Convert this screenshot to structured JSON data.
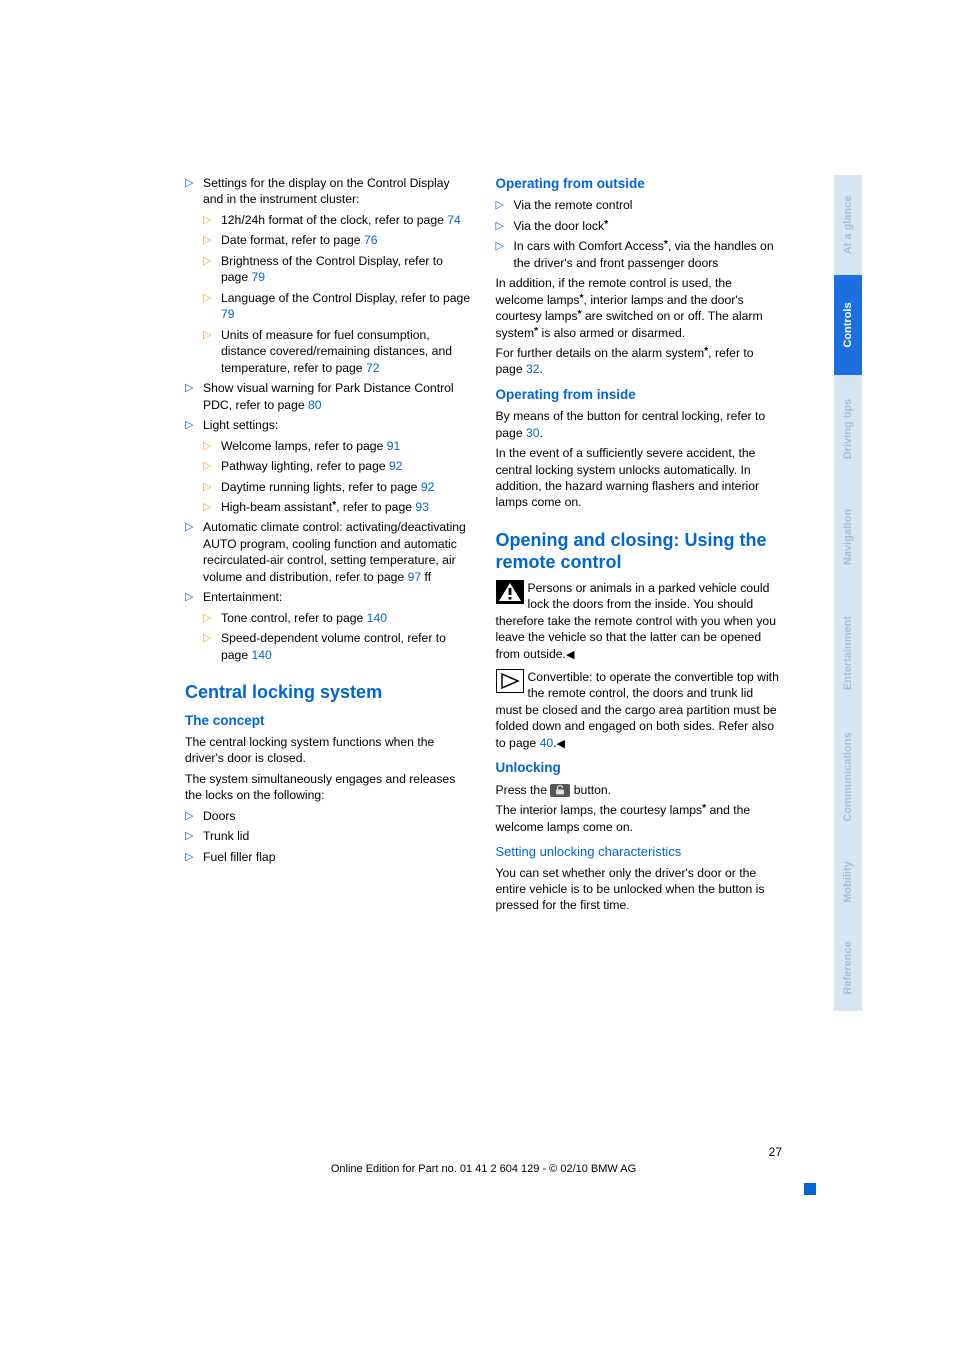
{
  "page_number": "27",
  "footer_line": "Online Edition for Part no. 01 41 2 604 129 - © 02/10 BMW AG",
  "tabs": [
    {
      "label": "At a glance",
      "active": false
    },
    {
      "label": "Controls",
      "active": true
    },
    {
      "label": "Driving tips",
      "active": false
    },
    {
      "label": "Navigation",
      "active": false
    },
    {
      "label": "Entertainment",
      "active": false
    },
    {
      "label": "Communications",
      "active": false
    },
    {
      "label": "Mobility",
      "active": false
    },
    {
      "label": "Reference",
      "active": false
    }
  ],
  "colors": {
    "link_blue": "#0066d4",
    "tab_inactive_bg": "#d7e4f2",
    "tab_inactive_text": "#a8bedd",
    "tab_active_bg": "#1b6fe0",
    "bullet_sub": "#f5a623"
  },
  "left_col": {
    "top_list": [
      {
        "text": "Settings for the display on the Control Display and in the instrument cluster:",
        "sub": [
          {
            "text": "12h/24h format of the clock, refer to page ",
            "page": "74"
          },
          {
            "text": "Date format, refer to page ",
            "page": "76"
          },
          {
            "text": "Brightness of the Control Display, refer to page ",
            "page": "79"
          },
          {
            "text": "Language of the Control Display, refer to page ",
            "page": "79"
          },
          {
            "text": "Units of measure for fuel consumption, distance covered/remaining distances, and temperature, refer to page ",
            "page": "72"
          }
        ]
      },
      {
        "text": "Show visual warning for Park Distance Control PDC, refer to page ",
        "page": "80"
      },
      {
        "text": "Light settings:",
        "sub": [
          {
            "text": "Welcome lamps, refer to page ",
            "page": "91"
          },
          {
            "text": "Pathway lighting, refer to page ",
            "page": "92"
          },
          {
            "text": "Daytime running lights, refer to page ",
            "page": "92"
          },
          {
            "text": "High-beam assistant",
            "star": true,
            "suffix": ", refer to page ",
            "page": "93"
          }
        ]
      },
      {
        "text": "Automatic climate control: activating/deactivating AUTO program, cooling function and automatic recirculated-air control, setting temperature, air volume and distribution, refer to page ",
        "page": "97",
        "suffix": " ff"
      },
      {
        "text": "Entertainment:",
        "sub": [
          {
            "text": "Tone control, refer to page ",
            "page": "140"
          },
          {
            "text": "Speed-dependent volume control, refer to page ",
            "page": "140"
          }
        ]
      }
    ],
    "h2_central": "Central locking system",
    "h3_concept": "The concept",
    "concept_p1": "The central locking system functions when the driver's door is closed.",
    "concept_p2": "The system simultaneously engages and releases the locks on the following:",
    "concept_list": [
      "Doors",
      "Trunk lid",
      "Fuel filler flap"
    ]
  },
  "right_col": {
    "h3_op_out": "Operating from outside",
    "op_out_list": [
      {
        "text": "Via the remote control"
      },
      {
        "text": "Via the door lock",
        "star": true
      },
      {
        "text_pre": "In cars with Comfort Access",
        "star": true,
        "text_post": ", via the handles on the driver's and front passenger doors"
      }
    ],
    "op_out_p1_a": "In addition, if the remote control is used, the welcome lamps",
    "op_out_p1_b": ", interior lamps and the door's courtesy lamps",
    "op_out_p1_c": " are switched on or off. The alarm system",
    "op_out_p1_d": " is also armed or disarmed.",
    "op_out_p2_a": "For further details on the alarm system",
    "op_out_p2_b": ", refer to page ",
    "op_out_p2_page": "32",
    "h3_op_in": "Operating from inside",
    "op_in_p1_a": "By means of the button for central locking, refer to page ",
    "op_in_p1_page": "30",
    "op_in_p2": "In the event of a sufficiently severe accident, the central locking system unlocks automatically. In addition, the hazard warning flashers and interior lamps come on.",
    "h2_open": "Opening and closing: Using the remote control",
    "warn_text": "Persons or animals in a parked vehicle could lock the doors from the inside. You should therefore take the remote control with you when you leave the vehicle so that the latter can be opened from outside.",
    "info_text_a": "Convertible: to operate the convertible top with the remote control, the doors and trunk lid must be closed and the cargo area partition must be folded down and engaged on both sides. Refer also to page ",
    "info_page": "40",
    "h3_unlock": "Unlocking",
    "unlock_p1_a": "Press the ",
    "unlock_p1_b": " button.",
    "unlock_p2_a": "The interior lamps, the courtesy lamps",
    "unlock_p2_b": " and the welcome lamps come on.",
    "h4_setting": "Setting unlocking characteristics",
    "setting_p": "You can set whether only the driver's door or the entire vehicle is to be unlocked when the button is pressed for the first time."
  }
}
